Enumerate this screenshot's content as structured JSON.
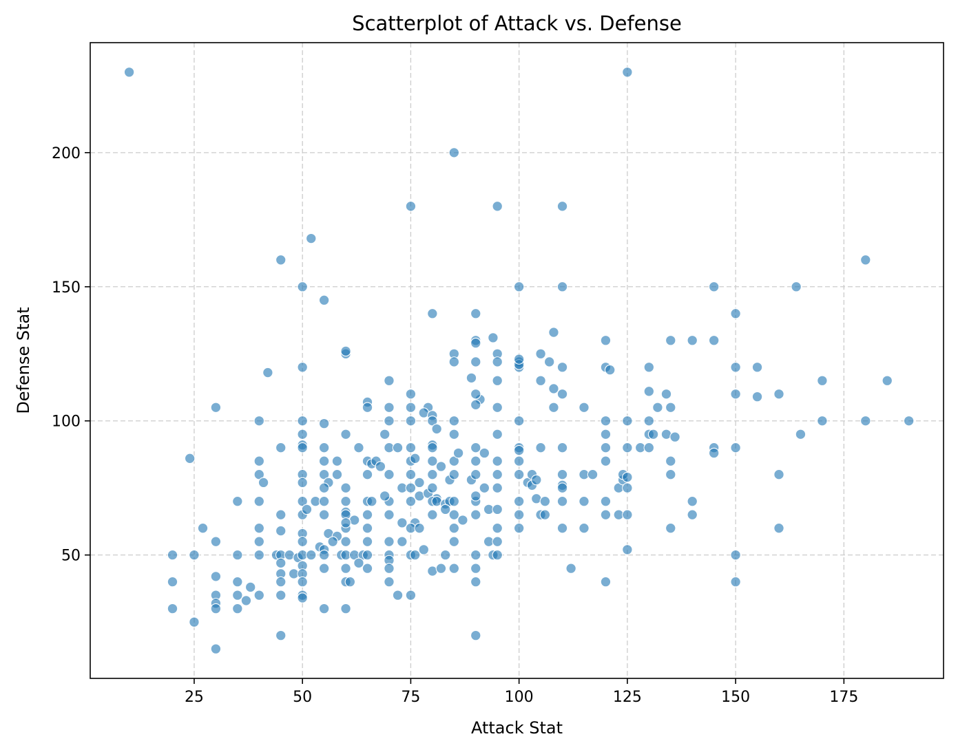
{
  "chart_data": {
    "type": "scatter",
    "title": "Scatterplot of Attack vs. Defense",
    "xlabel": "Attack Stat",
    "ylabel": "Defense Stat",
    "xlim": [
      1,
      198
    ],
    "ylim": [
      4,
      241
    ],
    "xticks": [
      25,
      50,
      75,
      100,
      125,
      150,
      175
    ],
    "yticks": [
      50,
      100,
      150,
      200
    ],
    "grid": true,
    "point_color": "#1f77b4",
    "points": [
      [
        10,
        230
      ],
      [
        125,
        230
      ],
      [
        85,
        200
      ],
      [
        75,
        180
      ],
      [
        95,
        180
      ],
      [
        110,
        180
      ],
      [
        52,
        168
      ],
      [
        45,
        160
      ],
      [
        180,
        160
      ],
      [
        50,
        150
      ],
      [
        100,
        150
      ],
      [
        110,
        150
      ],
      [
        145,
        150
      ],
      [
        164,
        150
      ],
      [
        55,
        145
      ],
      [
        80,
        140
      ],
      [
        90,
        140
      ],
      [
        150,
        140
      ],
      [
        108,
        133
      ],
      [
        90,
        130
      ],
      [
        90,
        129
      ],
      [
        94,
        131
      ],
      [
        120,
        130
      ],
      [
        135,
        130
      ],
      [
        140,
        130
      ],
      [
        145,
        130
      ],
      [
        60,
        125
      ],
      [
        60,
        126
      ],
      [
        85,
        125
      ],
      [
        95,
        125
      ],
      [
        105,
        125
      ],
      [
        85,
        122
      ],
      [
        90,
        122
      ],
      [
        95,
        122
      ],
      [
        100,
        122
      ],
      [
        100,
        120
      ],
      [
        100,
        121
      ],
      [
        100,
        123
      ],
      [
        107,
        122
      ],
      [
        110,
        120
      ],
      [
        120,
        120
      ],
      [
        121,
        119
      ],
      [
        130,
        120
      ],
      [
        150,
        120
      ],
      [
        155,
        120
      ],
      [
        50,
        120
      ],
      [
        42,
        118
      ],
      [
        89,
        116
      ],
      [
        70,
        115
      ],
      [
        95,
        115
      ],
      [
        105,
        115
      ],
      [
        170,
        115
      ],
      [
        185,
        115
      ],
      [
        91,
        108
      ],
      [
        90,
        110
      ],
      [
        75,
        110
      ],
      [
        108,
        112
      ],
      [
        110,
        110
      ],
      [
        130,
        111
      ],
      [
        134,
        110
      ],
      [
        150,
        110
      ],
      [
        155,
        109
      ],
      [
        160,
        110
      ],
      [
        30,
        105
      ],
      [
        65,
        107
      ],
      [
        65,
        105
      ],
      [
        70,
        105
      ],
      [
        75,
        105
      ],
      [
        79,
        105
      ],
      [
        90,
        106
      ],
      [
        95,
        105
      ],
      [
        108,
        105
      ],
      [
        115,
        105
      ],
      [
        132,
        105
      ],
      [
        135,
        105
      ],
      [
        40,
        100
      ],
      [
        50,
        100
      ],
      [
        55,
        99
      ],
      [
        70,
        100
      ],
      [
        75,
        100
      ],
      [
        78,
        103
      ],
      [
        80,
        102
      ],
      [
        80,
        100
      ],
      [
        85,
        100
      ],
      [
        100,
        100
      ],
      [
        120,
        100
      ],
      [
        125,
        100
      ],
      [
        130,
        100
      ],
      [
        170,
        100
      ],
      [
        180,
        100
      ],
      [
        190,
        100
      ],
      [
        50,
        95
      ],
      [
        60,
        95
      ],
      [
        69,
        95
      ],
      [
        81,
        97
      ],
      [
        85,
        95
      ],
      [
        95,
        95
      ],
      [
        120,
        95
      ],
      [
        130,
        95
      ],
      [
        131,
        95
      ],
      [
        134,
        95
      ],
      [
        136,
        94
      ],
      [
        165,
        95
      ],
      [
        45,
        90
      ],
      [
        50,
        91
      ],
      [
        50,
        90
      ],
      [
        55,
        90
      ],
      [
        63,
        90
      ],
      [
        70,
        90
      ],
      [
        72,
        90
      ],
      [
        75,
        90
      ],
      [
        80,
        91
      ],
      [
        80,
        90
      ],
      [
        90,
        90
      ],
      [
        100,
        90
      ],
      [
        100,
        89
      ],
      [
        105,
        90
      ],
      [
        110,
        90
      ],
      [
        120,
        90
      ],
      [
        125,
        90
      ],
      [
        128,
        90
      ],
      [
        130,
        90
      ],
      [
        145,
        90
      ],
      [
        145,
        88
      ],
      [
        150,
        90
      ],
      [
        24,
        86
      ],
      [
        40,
        85
      ],
      [
        55,
        85
      ],
      [
        58,
        85
      ],
      [
        65,
        85
      ],
      [
        66,
        84
      ],
      [
        67,
        85
      ],
      [
        68,
        83
      ],
      [
        75,
        85
      ],
      [
        76,
        86
      ],
      [
        80,
        85
      ],
      [
        82,
        83
      ],
      [
        85,
        85
      ],
      [
        86,
        88
      ],
      [
        90,
        85
      ],
      [
        92,
        88
      ],
      [
        95,
        85
      ],
      [
        100,
        85
      ],
      [
        120,
        85
      ],
      [
        135,
        85
      ],
      [
        40,
        80
      ],
      [
        41,
        77
      ],
      [
        50,
        80
      ],
      [
        50,
        77
      ],
      [
        55,
        80
      ],
      [
        56,
        77
      ],
      [
        58,
        80
      ],
      [
        65,
        80
      ],
      [
        70,
        80
      ],
      [
        73,
        75
      ],
      [
        75,
        80
      ],
      [
        75,
        75
      ],
      [
        77,
        77
      ],
      [
        77,
        72
      ],
      [
        79,
        73
      ],
      [
        80,
        80
      ],
      [
        80,
        75
      ],
      [
        81,
        71
      ],
      [
        84,
        78
      ],
      [
        85,
        80
      ],
      [
        89,
        78
      ],
      [
        90,
        80
      ],
      [
        95,
        80
      ],
      [
        95,
        75
      ],
      [
        100,
        80
      ],
      [
        102,
        77
      ],
      [
        103,
        80
      ],
      [
        103,
        76
      ],
      [
        104,
        78
      ],
      [
        110,
        80
      ],
      [
        110,
        76
      ],
      [
        110,
        75
      ],
      [
        115,
        80
      ],
      [
        117,
        80
      ],
      [
        123,
        75
      ],
      [
        124,
        78
      ],
      [
        124,
        80
      ],
      [
        125,
        75
      ],
      [
        125,
        79
      ],
      [
        135,
        80
      ],
      [
        160,
        80
      ],
      [
        35,
        70
      ],
      [
        40,
        70
      ],
      [
        50,
        70
      ],
      [
        53,
        70
      ],
      [
        55,
        70
      ],
      [
        55,
        75
      ],
      [
        60,
        75
      ],
      [
        60,
        70
      ],
      [
        60,
        66
      ],
      [
        65,
        70
      ],
      [
        66,
        70
      ],
      [
        70,
        70
      ],
      [
        69,
        72
      ],
      [
        75,
        70
      ],
      [
        80,
        70
      ],
      [
        81,
        70
      ],
      [
        83,
        69
      ],
      [
        84,
        70
      ],
      [
        85,
        70
      ],
      [
        90,
        70
      ],
      [
        90,
        72
      ],
      [
        92,
        75
      ],
      [
        93,
        67
      ],
      [
        95,
        67
      ],
      [
        100,
        70
      ],
      [
        104,
        71
      ],
      [
        106,
        70
      ],
      [
        110,
        70
      ],
      [
        115,
        70
      ],
      [
        120,
        70
      ],
      [
        140,
        70
      ],
      [
        45,
        65
      ],
      [
        50,
        65
      ],
      [
        51,
        67
      ],
      [
        55,
        65
      ],
      [
        60,
        65
      ],
      [
        62,
        63
      ],
      [
        65,
        65
      ],
      [
        70,
        65
      ],
      [
        73,
        62
      ],
      [
        76,
        62
      ],
      [
        80,
        65
      ],
      [
        83,
        67
      ],
      [
        85,
        65
      ],
      [
        87,
        63
      ],
      [
        90,
        65
      ],
      [
        100,
        65
      ],
      [
        105,
        65
      ],
      [
        106,
        65
      ],
      [
        120,
        65
      ],
      [
        123,
        65
      ],
      [
        125,
        65
      ],
      [
        140,
        65
      ],
      [
        27,
        60
      ],
      [
        40,
        60
      ],
      [
        45,
        59
      ],
      [
        50,
        58
      ],
      [
        56,
        58
      ],
      [
        58,
        57
      ],
      [
        60,
        60
      ],
      [
        60,
        62
      ],
      [
        65,
        60
      ],
      [
        75,
        60
      ],
      [
        77,
        60
      ],
      [
        85,
        60
      ],
      [
        95,
        60
      ],
      [
        100,
        60
      ],
      [
        110,
        60
      ],
      [
        115,
        60
      ],
      [
        135,
        60
      ],
      [
        160,
        60
      ],
      [
        30,
        55
      ],
      [
        40,
        55
      ],
      [
        50,
        55
      ],
      [
        54,
        53
      ],
      [
        55,
        52
      ],
      [
        57,
        55
      ],
      [
        60,
        55
      ],
      [
        65,
        55
      ],
      [
        70,
        55
      ],
      [
        73,
        55
      ],
      [
        78,
        52
      ],
      [
        85,
        55
      ],
      [
        93,
        55
      ],
      [
        95,
        55
      ],
      [
        125,
        52
      ],
      [
        20,
        50
      ],
      [
        25,
        50
      ],
      [
        35,
        50
      ],
      [
        40,
        50
      ],
      [
        44,
        50
      ],
      [
        45,
        50
      ],
      [
        47,
        50
      ],
      [
        49,
        49
      ],
      [
        50,
        50
      ],
      [
        52,
        50
      ],
      [
        55,
        50
      ],
      [
        59,
        50
      ],
      [
        60,
        50
      ],
      [
        62,
        50
      ],
      [
        64,
        50
      ],
      [
        65,
        50
      ],
      [
        70,
        50
      ],
      [
        70,
        48
      ],
      [
        75,
        50
      ],
      [
        76,
        50
      ],
      [
        83,
        50
      ],
      [
        90,
        50
      ],
      [
        94,
        50
      ],
      [
        95,
        50
      ],
      [
        150,
        50
      ],
      [
        45,
        47
      ],
      [
        48,
        43
      ],
      [
        50,
        46
      ],
      [
        50,
        43
      ],
      [
        55,
        45
      ],
      [
        60,
        45
      ],
      [
        63,
        47
      ],
      [
        65,
        45
      ],
      [
        70,
        45
      ],
      [
        80,
        44
      ],
      [
        82,
        45
      ],
      [
        85,
        45
      ],
      [
        90,
        45
      ],
      [
        112,
        45
      ],
      [
        20,
        40
      ],
      [
        30,
        42
      ],
      [
        35,
        40
      ],
      [
        38,
        38
      ],
      [
        40,
        35
      ],
      [
        45,
        43
      ],
      [
        45,
        40
      ],
      [
        50,
        40
      ],
      [
        60,
        40
      ],
      [
        61,
        40
      ],
      [
        70,
        40
      ],
      [
        90,
        40
      ],
      [
        120,
        40
      ],
      [
        150,
        40
      ],
      [
        30,
        35
      ],
      [
        35,
        35
      ],
      [
        37,
        33
      ],
      [
        45,
        35
      ],
      [
        50,
        35
      ],
      [
        50,
        34
      ],
      [
        72,
        35
      ],
      [
        75,
        35
      ],
      [
        30,
        32
      ],
      [
        30,
        30
      ],
      [
        35,
        30
      ],
      [
        20,
        30
      ],
      [
        55,
        30
      ],
      [
        60,
        30
      ],
      [
        25,
        25
      ],
      [
        45,
        20
      ],
      [
        90,
        20
      ],
      [
        30,
        15
      ]
    ]
  }
}
